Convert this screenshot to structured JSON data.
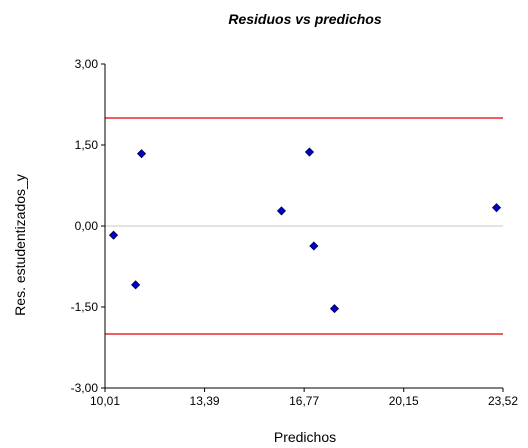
{
  "chart_data": {
    "type": "scatter",
    "title": "Residuos vs predichos",
    "xlabel": "Predichos",
    "ylabel": "Res. estudentizados_y",
    "xlim": [
      10.01,
      23.52
    ],
    "ylim": [
      -3.0,
      3.0
    ],
    "x_tick_values": [
      10.01,
      13.39,
      16.77,
      20.15,
      23.52
    ],
    "x_tick_labels": [
      "10,01",
      "13,39",
      "16,77",
      "20,15",
      "23,52"
    ],
    "y_tick_values": [
      3.0,
      1.5,
      0.0,
      -1.5,
      -3.0
    ],
    "y_tick_labels": [
      "3,00",
      "1,50",
      "0,00",
      "-1,50",
      "-3,00"
    ],
    "reference_lines": [
      {
        "y": 2.0,
        "color": "#e00000"
      },
      {
        "y": -2.0,
        "color": "#e00000"
      },
      {
        "y": 0.0,
        "color": "#c8c8c8"
      }
    ],
    "point_color": "#0000c8",
    "points": [
      {
        "x": 10.3,
        "y": -0.17
      },
      {
        "x": 11.05,
        "y": -1.09
      },
      {
        "x": 11.25,
        "y": 1.34
      },
      {
        "x": 16.0,
        "y": 0.28
      },
      {
        "x": 16.95,
        "y": 1.37
      },
      {
        "x": 17.1,
        "y": -0.37
      },
      {
        "x": 17.8,
        "y": -1.53
      },
      {
        "x": 23.3,
        "y": 0.34
      }
    ],
    "grid": false,
    "legend": "none"
  }
}
